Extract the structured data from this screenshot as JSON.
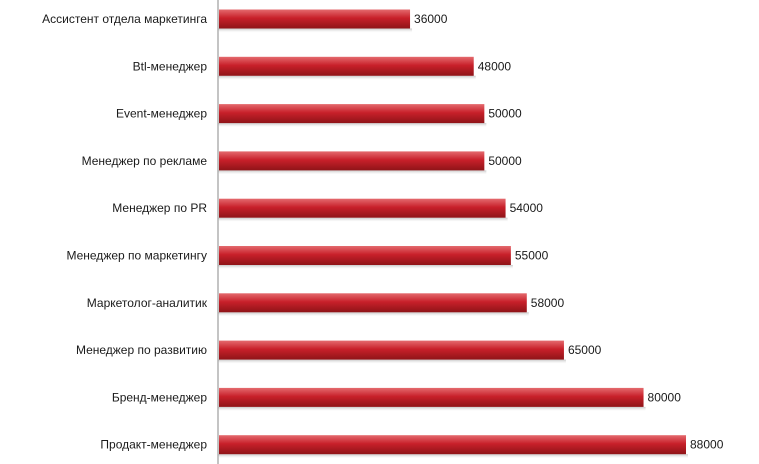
{
  "chart_data": {
    "type": "bar",
    "orientation": "horizontal",
    "categories": [
      "Ассистент отдела маркетинга",
      "Btl-менеджер",
      "Event-менеджер",
      "Менеджер по рекламе",
      "Менеджер по PR",
      "Менеджер по маркетингу",
      "Маркетолог-аналитик",
      "Менеджер по развитию",
      "Бренд-менеджер",
      "Продакт-менеджер"
    ],
    "values": [
      36000,
      48000,
      50000,
      50000,
      54000,
      55000,
      58000,
      65000,
      80000,
      88000
    ],
    "data_labels": [
      "36000",
      "48000",
      "50000",
      "50000",
      "54000",
      "55000",
      "58000",
      "65000",
      "80000",
      "88000"
    ],
    "title": "",
    "xlabel": "",
    "ylabel": "",
    "xlim": [
      0,
      100000
    ],
    "grid": false,
    "legend": "none",
    "bar_color": "#c8202a",
    "bar_color_light": "#e46a6e",
    "bar_color_dark": "#8f1418"
  }
}
